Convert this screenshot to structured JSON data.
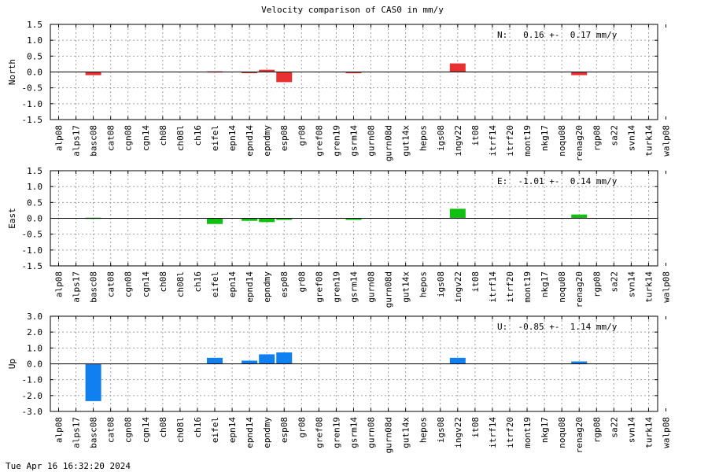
{
  "title": "Velocity comparison of CAS0 in mm/y",
  "timestamp": "Tue Apr 16 16:32:20 2024",
  "chart_data": [
    {
      "type": "bar",
      "title": "Velocity comparison of CAS0 in mm/y",
      "ylabel": "North",
      "annotation": "N:   0.16 +-  0.17 mm/y",
      "color": "#e83030",
      "ylim": [
        -1.5,
        1.5
      ],
      "yticks": [
        1.5,
        1.0,
        0.5,
        0.0,
        -0.5,
        -1.0,
        -1.5
      ],
      "ytick_labels": [
        "1.5",
        "1.0",
        "0.5",
        "0.0",
        "-0.5",
        "-1.0",
        "-1.5"
      ],
      "grid": true,
      "categories": [
        "alp08",
        "alps17",
        "basc08",
        "cat08",
        "cgn08",
        "cgn14",
        "ch08",
        "ch08l",
        "ch16",
        "eifel",
        "epn14",
        "epnd14",
        "epndmy",
        "esp08",
        "gr08",
        "gref08",
        "gren19",
        "gsrm14",
        "gurn08",
        "gurn08d",
        "gut14x",
        "hepos",
        "igs08",
        "ingv22",
        "it08",
        "itrf14",
        "itrf20",
        "mont19",
        "nkg17",
        "noqu08",
        "renag20",
        "rgp08",
        "sa22",
        "svn14",
        "turk14",
        "walp08"
      ],
      "values": [
        null,
        null,
        -0.1,
        null,
        null,
        null,
        null,
        null,
        null,
        0.02,
        null,
        -0.02,
        0.07,
        -0.32,
        null,
        null,
        null,
        -0.04,
        null,
        null,
        null,
        null,
        null,
        0.27,
        null,
        null,
        null,
        null,
        null,
        null,
        -0.1,
        null,
        null,
        null,
        null,
        null
      ]
    },
    {
      "type": "bar",
      "ylabel": "East",
      "annotation": "E:  -1.01 +-  0.14 mm/y",
      "color": "#10c010",
      "ylim": [
        -1.5,
        1.5
      ],
      "yticks": [
        1.5,
        1.0,
        0.5,
        0.0,
        -0.5,
        -1.0,
        -1.5
      ],
      "ytick_labels": [
        "1.5",
        "1.0",
        "0.5",
        "0.0",
        "-0.5",
        "-1.0",
        "-1.5"
      ],
      "grid": true,
      "categories": [
        "alp08",
        "alps17",
        "basc08",
        "cat08",
        "cgn08",
        "cgn14",
        "ch08",
        "ch08l",
        "ch16",
        "eifel",
        "epn14",
        "epnd14",
        "epndmy",
        "esp08",
        "gr08",
        "gref08",
        "gren19",
        "gsrm14",
        "gurn08",
        "gurn08d",
        "gut14x",
        "hepos",
        "igs08",
        "ingv22",
        "it08",
        "itrf14",
        "itrf20",
        "mont19",
        "nkg17",
        "noqu08",
        "renag20",
        "rgp08",
        "sa22",
        "svn14",
        "turk14",
        "walp08"
      ],
      "values": [
        null,
        null,
        0.02,
        null,
        null,
        null,
        null,
        null,
        null,
        -0.18,
        null,
        -0.08,
        -0.12,
        -0.05,
        null,
        null,
        null,
        -0.05,
        null,
        null,
        null,
        null,
        null,
        0.3,
        null,
        null,
        null,
        null,
        null,
        null,
        0.12,
        null,
        null,
        null,
        null,
        null
      ]
    },
    {
      "type": "bar",
      "ylabel": "Up",
      "annotation": "U:  -0.85 +-  1.14 mm/y",
      "color": "#1080f0",
      "ylim": [
        -3.0,
        3.0
      ],
      "yticks": [
        3.0,
        2.0,
        1.0,
        0.0,
        -1.0,
        -2.0,
        -3.0
      ],
      "ytick_labels": [
        "3.0",
        "2.0",
        "1.0",
        "0.0",
        "-1.0",
        "-2.0",
        "-3.0"
      ],
      "grid": true,
      "categories": [
        "alp08",
        "alps17",
        "basc08",
        "cat08",
        "cgn08",
        "cgn14",
        "ch08",
        "ch08l",
        "ch16",
        "eifel",
        "epn14",
        "epnd14",
        "epndmy",
        "esp08",
        "gr08",
        "gref08",
        "gren19",
        "gsrm14",
        "gurn08",
        "gurn08d",
        "gut14x",
        "hepos",
        "igs08",
        "ingv22",
        "it08",
        "itrf14",
        "itrf20",
        "mont19",
        "nkg17",
        "noqu08",
        "renag20",
        "rgp08",
        "sa22",
        "svn14",
        "turk14",
        "walp08"
      ],
      "values": [
        null,
        null,
        -2.35,
        null,
        null,
        null,
        null,
        null,
        null,
        0.38,
        null,
        0.2,
        0.6,
        0.72,
        null,
        null,
        null,
        null,
        null,
        null,
        null,
        null,
        null,
        0.38,
        null,
        null,
        null,
        null,
        null,
        null,
        0.15,
        null,
        null,
        null,
        null,
        null
      ]
    }
  ]
}
